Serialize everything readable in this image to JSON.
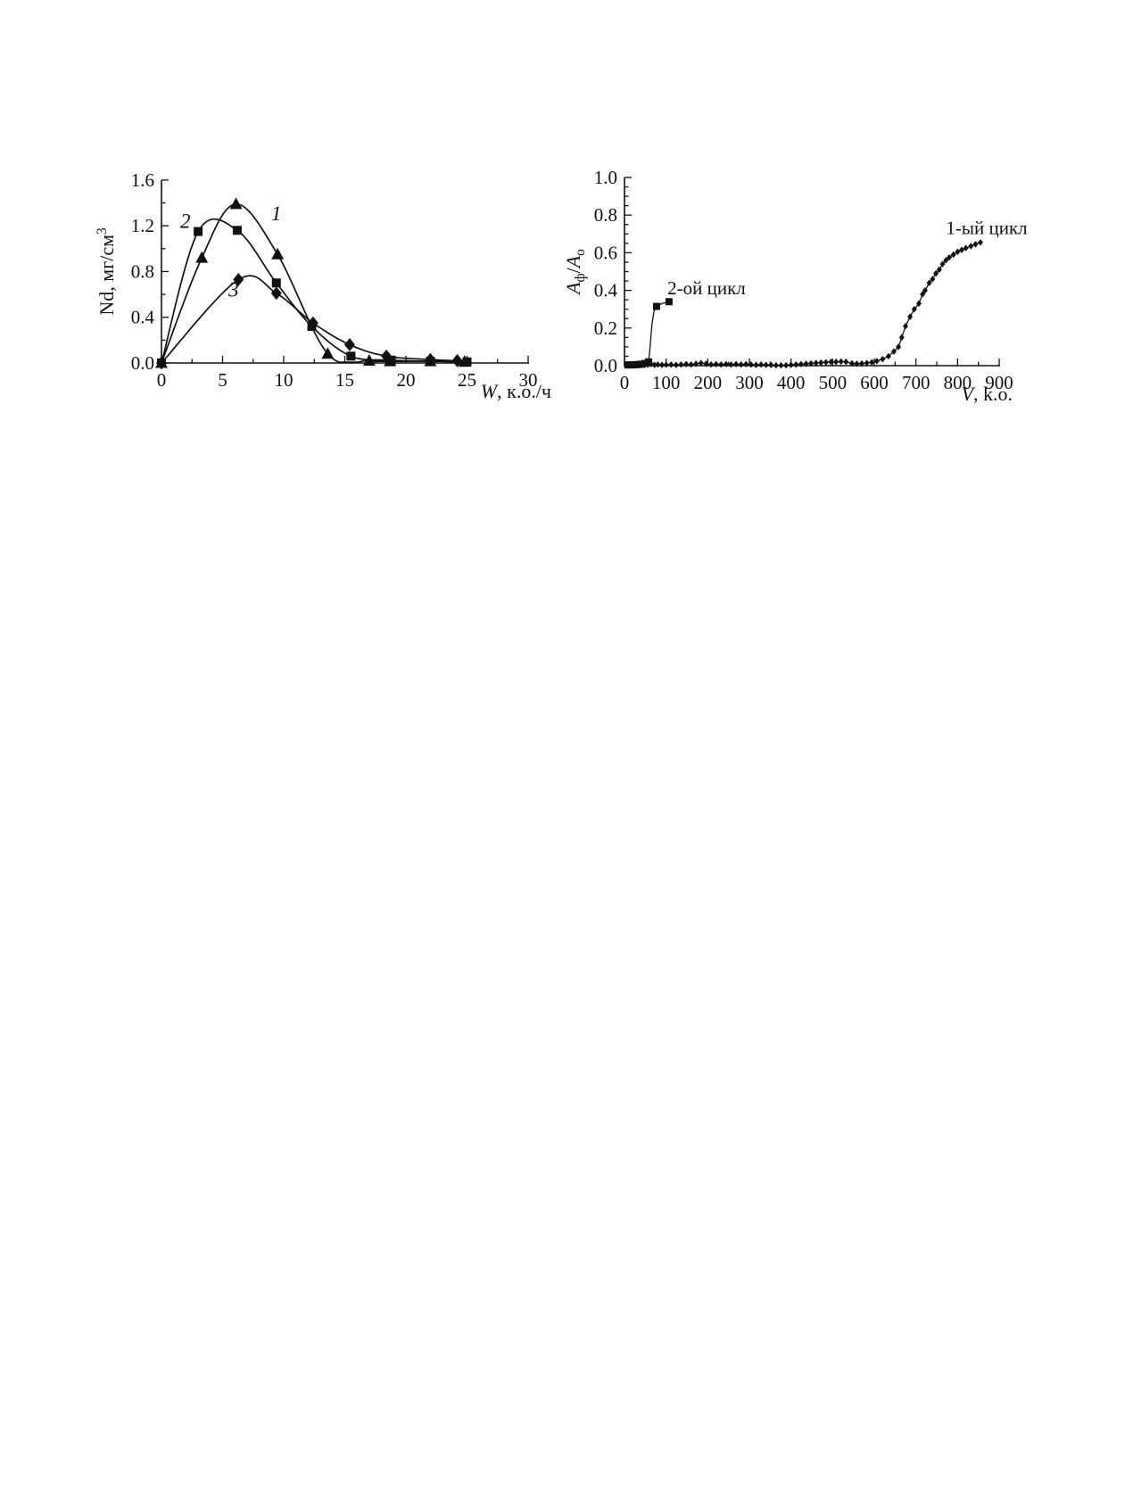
{
  "page": {
    "background": "#ffffff",
    "ink": "#111111"
  },
  "chart_data": [
    {
      "id": "droplet-density",
      "name": "droplet-density-chart",
      "type": "line",
      "title": "",
      "xlabel_parts": [
        {
          "text": "W",
          "italic": true
        },
        {
          "text": ", к.о./ч"
        }
      ],
      "ylabel_parts": [
        {
          "text": "Nd, мг/см"
        },
        {
          "text": "3",
          "sup": true
        }
      ],
      "xlim": [
        0,
        30
      ],
      "ylim": [
        0,
        1.6
      ],
      "grid": false,
      "x_major_ticks": [
        {
          "v": 0,
          "label": "0"
        },
        {
          "v": 5,
          "label": "5"
        },
        {
          "v": 10,
          "label": "10"
        },
        {
          "v": 15,
          "label": "15"
        },
        {
          "v": 20,
          "label": "20"
        },
        {
          "v": 25,
          "label": "25"
        },
        {
          "v": 30,
          "label": "30"
        }
      ],
      "y_major_ticks": [
        {
          "v": 0.0,
          "label": "0.0"
        },
        {
          "v": 0.4,
          "label": "0.4"
        },
        {
          "v": 0.8,
          "label": "0.8"
        },
        {
          "v": 1.2,
          "label": "1.2"
        },
        {
          "v": 1.6,
          "label": "1.6"
        }
      ],
      "x_minor_step": 2.5,
      "y_minor_step": 0.2,
      "series": [
        {
          "name": "1",
          "marker": "triangle",
          "marker_size": 12,
          "smooth": true,
          "points": [
            [
              0,
              0
            ],
            [
              3.3,
              0.92
            ],
            [
              6.1,
              1.39
            ],
            [
              9.5,
              0.95
            ],
            [
              13.6,
              0.08
            ],
            [
              17,
              0.02
            ],
            [
              18.7,
              0.015
            ],
            [
              22,
              0.015
            ],
            [
              24.8,
              0.01
            ]
          ]
        },
        {
          "name": "2",
          "marker": "square",
          "marker_size": 10,
          "smooth": true,
          "points": [
            [
              0,
              0
            ],
            [
              3,
              1.15
            ],
            [
              6.2,
              1.16
            ],
            [
              9.4,
              0.7
            ],
            [
              12.3,
              0.32
            ],
            [
              15.5,
              0.06
            ],
            [
              18.8,
              0.025
            ],
            [
              22,
              0.015
            ],
            [
              25,
              0.01
            ]
          ]
        },
        {
          "name": "3",
          "marker": "diamond",
          "marker_size": 12,
          "smooth": true,
          "points": [
            [
              0,
              0
            ],
            [
              6.3,
              0.73
            ],
            [
              9.4,
              0.61
            ],
            [
              12.4,
              0.35
            ],
            [
              15.4,
              0.16
            ],
            [
              18.4,
              0.06
            ],
            [
              22,
              0.03
            ],
            [
              24.2,
              0.02
            ]
          ]
        }
      ],
      "series_labels": [
        {
          "text": "1",
          "italic": true,
          "x": 9.4,
          "y": 1.25
        },
        {
          "text": "2",
          "italic": true,
          "x": 1.95,
          "y": 1.18
        },
        {
          "text": "3",
          "italic": true,
          "x": 5.9,
          "y": 0.58
        }
      ],
      "annotations": []
    },
    {
      "id": "breakthrough",
      "name": "breakthrough-curves-chart",
      "type": "line",
      "title": "",
      "xlabel_parts": [
        {
          "text": "V",
          "italic": true
        },
        {
          "text": ", k.o."
        }
      ],
      "ylabel_parts": [
        {
          "text": "A",
          "italic": true
        },
        {
          "text": "ф",
          "sub": true
        },
        {
          "text": "/"
        },
        {
          "text": "A",
          "italic": true
        },
        {
          "text": "о",
          "sub": true
        }
      ],
      "xlim": [
        0,
        900
      ],
      "ylim": [
        0,
        1.0
      ],
      "grid": false,
      "x_major_ticks": [
        {
          "v": 0,
          "label": "0"
        },
        {
          "v": 100,
          "label": "100"
        },
        {
          "v": 200,
          "label": "200"
        },
        {
          "v": 300,
          "label": "300"
        },
        {
          "v": 400,
          "label": "400"
        },
        {
          "v": 500,
          "label": "500"
        },
        {
          "v": 600,
          "label": "600"
        },
        {
          "v": 700,
          "label": "700"
        },
        {
          "v": 800,
          "label": "800"
        },
        {
          "v": 900,
          "label": "900"
        }
      ],
      "y_major_ticks": [
        {
          "v": 0.0,
          "label": "0.0"
        },
        {
          "v": 0.2,
          "label": "0.2"
        },
        {
          "v": 0.4,
          "label": "0.4"
        },
        {
          "v": 0.6,
          "label": "0.6"
        },
        {
          "v": 0.8,
          "label": "0.8"
        },
        {
          "v": 1.0,
          "label": "1.0"
        }
      ],
      "x_minor_step": 50,
      "y_minor_step": 0.05,
      "series": [
        {
          "name": "1-ый цикл",
          "marker": "diamond",
          "marker_size": 6,
          "smooth": false,
          "points": [
            [
              8,
              0.004
            ],
            [
              16,
              0.006
            ],
            [
              24,
              0.004
            ],
            [
              32,
              0.008
            ],
            [
              40,
              0.006
            ],
            [
              48,
              0.004
            ],
            [
              56,
              0.006
            ],
            [
              64,
              0.008
            ],
            [
              72,
              0.004
            ],
            [
              80,
              0.006
            ],
            [
              90,
              0.004
            ],
            [
              100,
              0.005
            ],
            [
              112,
              0.006
            ],
            [
              124,
              0.004
            ],
            [
              136,
              0.006
            ],
            [
              148,
              0.008
            ],
            [
              160,
              0.006
            ],
            [
              172,
              0.01
            ],
            [
              184,
              0.014
            ],
            [
              196,
              0.01
            ],
            [
              208,
              0.006
            ],
            [
              220,
              0.008
            ],
            [
              232,
              0.006
            ],
            [
              244,
              0.008
            ],
            [
              256,
              0.006
            ],
            [
              268,
              0.008
            ],
            [
              280,
              0.006
            ],
            [
              292,
              0.008
            ],
            [
              304,
              0.006
            ],
            [
              316,
              0.004
            ],
            [
              328,
              0.006
            ],
            [
              340,
              0.004
            ],
            [
              352,
              0.004
            ],
            [
              364,
              0.002
            ],
            [
              376,
              0.002
            ],
            [
              388,
              0.002
            ],
            [
              400,
              0.004
            ],
            [
              412,
              0.006
            ],
            [
              424,
              0.008
            ],
            [
              436,
              0.01
            ],
            [
              448,
              0.012
            ],
            [
              460,
              0.014
            ],
            [
              472,
              0.016
            ],
            [
              484,
              0.018
            ],
            [
              496,
              0.02
            ],
            [
              508,
              0.02
            ],
            [
              520,
              0.022
            ],
            [
              532,
              0.02
            ],
            [
              546,
              0.012
            ],
            [
              558,
              0.01
            ],
            [
              570,
              0.012
            ],
            [
              582,
              0.014
            ],
            [
              594,
              0.018
            ],
            [
              606,
              0.024
            ],
            [
              620,
              0.035
            ],
            [
              634,
              0.05
            ],
            [
              647,
              0.075
            ],
            [
              658,
              0.1
            ],
            [
              666,
              0.15
            ],
            [
              675,
              0.21
            ],
            [
              686,
              0.26
            ],
            [
              696,
              0.3
            ],
            [
              707,
              0.33
            ],
            [
              716,
              0.38
            ],
            [
              722,
              0.4
            ],
            [
              732,
              0.44
            ],
            [
              740,
              0.46
            ],
            [
              748,
              0.49
            ],
            [
              756,
              0.51
            ],
            [
              764,
              0.54
            ],
            [
              772,
              0.56
            ],
            [
              780,
              0.575
            ],
            [
              790,
              0.59
            ],
            [
              800,
              0.605
            ],
            [
              810,
              0.615
            ],
            [
              820,
              0.625
            ],
            [
              832,
              0.635
            ],
            [
              843,
              0.645
            ],
            [
              855,
              0.655
            ]
          ]
        },
        {
          "name": "2-ой цикл",
          "marker": "square",
          "marker_size": 8,
          "smooth": false,
          "points": [
            [
              8,
              0.004
            ],
            [
              16,
              0.004
            ],
            [
              25,
              0.005
            ],
            [
              33,
              0.006
            ],
            [
              41,
              0.008
            ],
            [
              50,
              0.012
            ],
            [
              58,
              0.02
            ],
            [
              61,
              0.09
            ],
            [
              66,
              0.22
            ],
            [
              71,
              0.29
            ],
            [
              77,
              0.315
            ],
            [
              90,
              0.33
            ],
            [
              107,
              0.34
            ]
          ],
          "marker_points": [
            [
              8,
              0.004
            ],
            [
              16,
              0.004
            ],
            [
              25,
              0.005
            ],
            [
              33,
              0.006
            ],
            [
              41,
              0.008
            ],
            [
              50,
              0.012
            ],
            [
              58,
              0.02
            ],
            [
              77,
              0.315
            ],
            [
              107,
              0.34
            ]
          ]
        }
      ],
      "series_labels": [],
      "annotations": [
        {
          "text": "1-ый цикл",
          "x": 870,
          "y": 0.7
        },
        {
          "text": "2-ой цикл",
          "x": 197,
          "y": 0.38
        }
      ]
    }
  ]
}
